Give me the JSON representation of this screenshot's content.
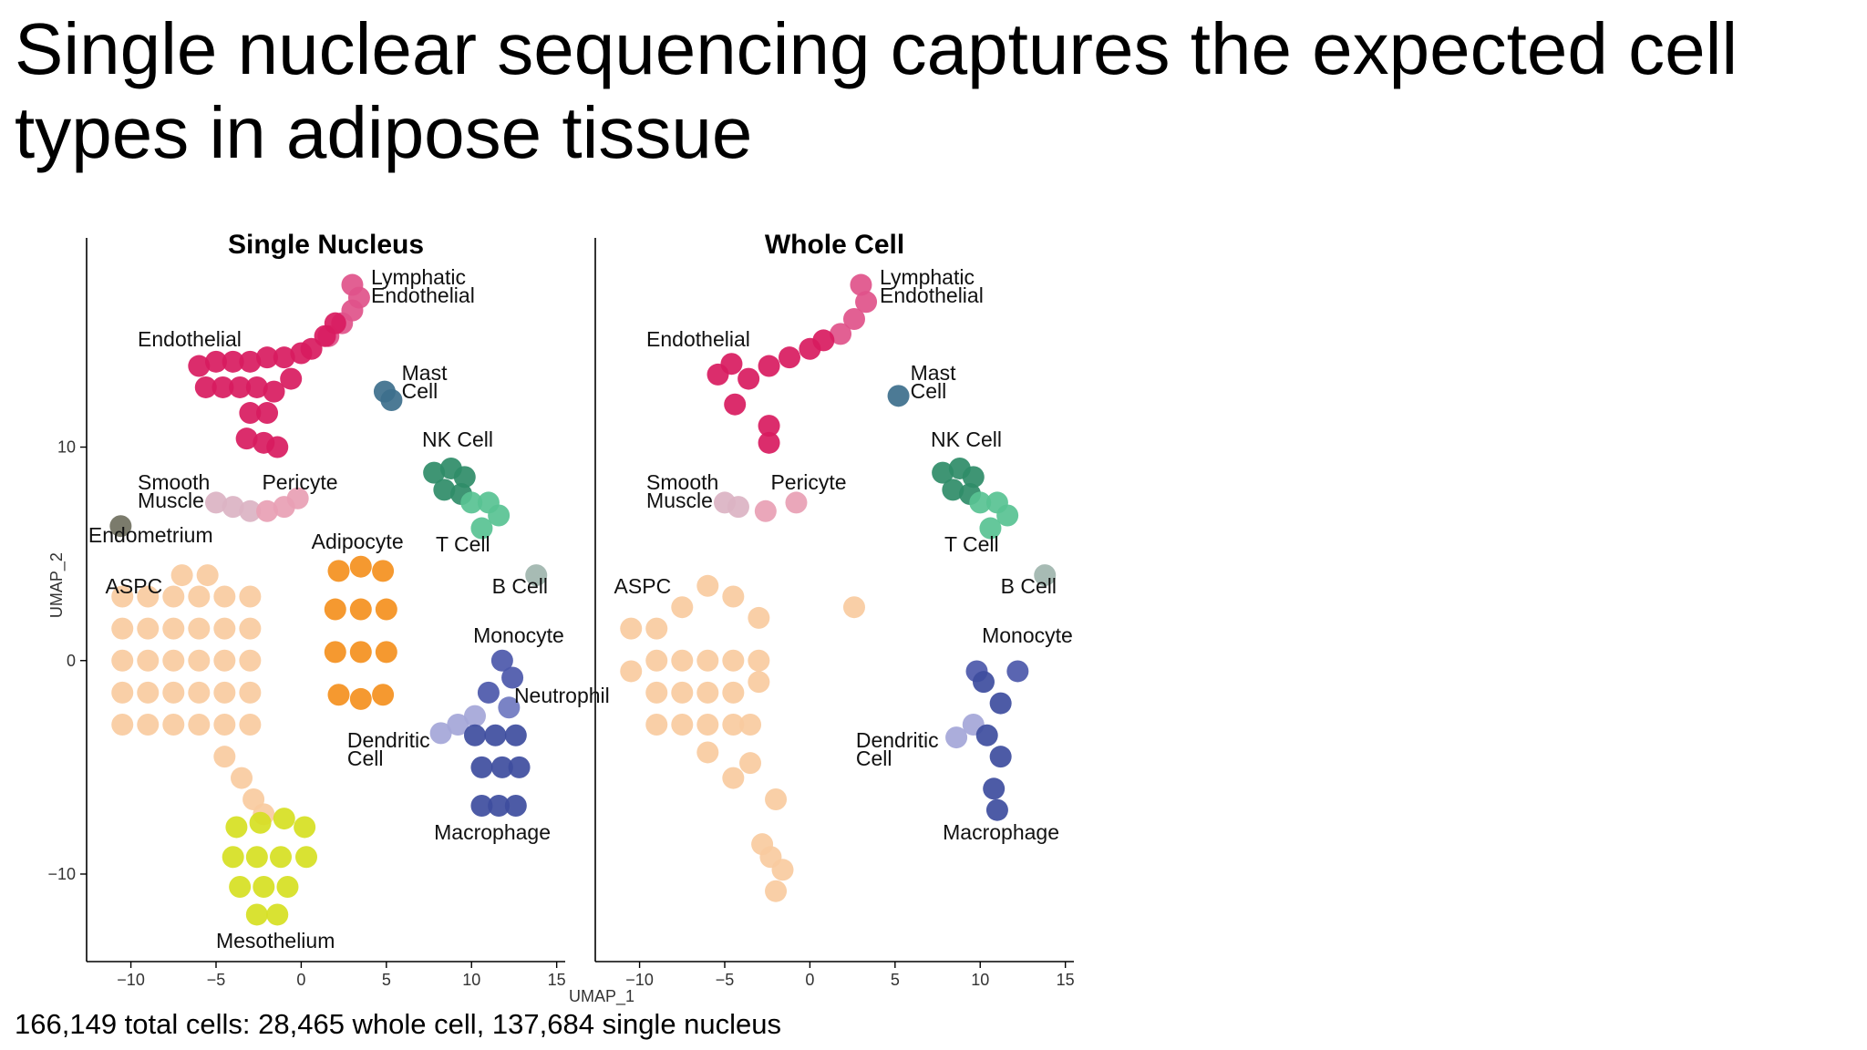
{
  "title": "Single nuclear sequencing captures the expected cell types in adipose tissue",
  "footer": "166,149 total cells: 28,465 whole cell, 137,684 single nucleus",
  "chart_data": [
    {
      "type": "scatter",
      "title": "Single Nucleus",
      "y_label": "UMAP_2",
      "xlim": [
        -12.6,
        15.5
      ],
      "ylim": [
        -14.1,
        19.8
      ],
      "xticks": [
        {
          "value": -10,
          "label": "−10"
        },
        {
          "value": -5,
          "label": "−5"
        },
        0,
        5,
        10,
        15
      ],
      "yticks": [
        {
          "value": -10,
          "label": "−10"
        },
        0,
        10
      ],
      "series": [
        {
          "name": "Lymphatic Endothelial",
          "color": "#e0528a",
          "x": [
            3.0,
            3.4,
            3.0,
            2.4,
            1.6
          ],
          "y": [
            17.6,
            17.0,
            16.4,
            15.8,
            15.2
          ],
          "label_x": 4.1,
          "label_y": 18.4
        },
        {
          "name": "Endothelial",
          "color": "#d81b5f",
          "x": [
            -6,
            -5,
            -4,
            -3,
            -2,
            -1,
            0,
            -5.6,
            -4.6,
            -3.6,
            -2.6,
            -1.6,
            -0.6,
            0.6,
            -3,
            -2,
            -3.2,
            -2.2,
            -1.4,
            1.4,
            2.0
          ],
          "y": [
            13.8,
            14.0,
            14.0,
            14.0,
            14.2,
            14.2,
            14.4,
            12.8,
            12.8,
            12.8,
            12.8,
            12.6,
            13.2,
            14.6,
            11.6,
            11.6,
            10.4,
            10.2,
            10.0,
            15.2,
            15.8
          ],
          "label_x": -9.6,
          "label_y": 15.5
        },
        {
          "name": "Mast Cell",
          "color": "#3d6f8c",
          "x": [
            4.9,
            5.3
          ],
          "y": [
            12.6,
            12.2
          ],
          "label_x": 5.9,
          "label_y": 13.9
        },
        {
          "name": "NK Cell",
          "color": "#2f8c68",
          "x": [
            7.8,
            8.8,
            9.6,
            8.4,
            9.4
          ],
          "y": [
            8.8,
            9.0,
            8.6,
            8.0,
            7.8
          ],
          "label_x": 7.1,
          "label_y": 10.8
        },
        {
          "name": "T Cell",
          "color": "#58c293",
          "x": [
            10.0,
            11.0,
            11.6,
            10.6
          ],
          "y": [
            7.4,
            7.4,
            6.8,
            6.2
          ],
          "label_x": 7.9,
          "label_y": 5.9
        },
        {
          "name": "Smooth Muscle",
          "color": "#dbb3c3",
          "x": [
            -5.0,
            -4.0,
            -3.0
          ],
          "y": [
            7.4,
            7.2,
            7.0
          ],
          "label_x": -9.6,
          "label_y": 8.8
        },
        {
          "name": "Pericyte",
          "color": "#e8a0b4",
          "x": [
            -2.0,
            -1.0,
            -0.2
          ],
          "y": [
            7.0,
            7.2,
            7.6
          ],
          "label_x": -2.3,
          "label_y": 8.8
        },
        {
          "name": "Endometrium",
          "color": "#707060",
          "x": [
            -10.6
          ],
          "y": [
            6.3
          ],
          "label_x": -12.5,
          "label_y": 6.3
        },
        {
          "name": "Adipocyte",
          "color": "#f4901e",
          "x": [
            2.2,
            3.5,
            4.8,
            2.0,
            3.5,
            5.0,
            2.0,
            3.5,
            5.0,
            2.2,
            3.5,
            4.8
          ],
          "y": [
            4.2,
            4.4,
            4.2,
            2.4,
            2.4,
            2.4,
            0.4,
            0.4,
            0.4,
            -1.6,
            -1.8,
            -1.6
          ],
          "label_x": 0.6,
          "label_y": 6.0
        },
        {
          "name": "ASPC",
          "color": "#f9cb9f",
          "x": [
            -10.5,
            -9,
            -7.5,
            -6,
            -4.5,
            -3,
            -10.5,
            -9,
            -7.5,
            -6,
            -4.5,
            -3,
            -10.5,
            -9,
            -7.5,
            -6,
            -4.5,
            -3,
            -10.5,
            -9,
            -7.5,
            -6,
            -4.5,
            -3,
            -10.5,
            -9,
            -7.5,
            -6,
            -4.5,
            -3,
            -7,
            -5.5,
            -4.5,
            -3.5,
            -2.8,
            -2.2
          ],
          "y": [
            3,
            3,
            3,
            3,
            3,
            3,
            1.5,
            1.5,
            1.5,
            1.5,
            1.5,
            1.5,
            0,
            0,
            0,
            0,
            0,
            0,
            -1.5,
            -1.5,
            -1.5,
            -1.5,
            -1.5,
            -1.5,
            -3,
            -3,
            -3,
            -3,
            -3,
            -3,
            4,
            4,
            -4.5,
            -5.5,
            -6.5,
            -7.2
          ],
          "label_x": -11.5,
          "label_y": 3.9
        },
        {
          "name": "B Cell",
          "color": "#9fb5ae",
          "x": [
            13.8
          ],
          "y": [
            4.0
          ],
          "label_x": 11.2,
          "label_y": 3.9
        },
        {
          "name": "Monocyte",
          "color": "#4c58aa",
          "x": [
            11.8,
            12.4,
            11.0
          ],
          "y": [
            0,
            -0.8,
            -1.5
          ],
          "label_x": 10.1,
          "label_y": 1.6
        },
        {
          "name": "Neutrophil",
          "color": "#6f78c0",
          "x": [
            12.2
          ],
          "y": [
            -2.2
          ],
          "label_x": 12.5,
          "label_y": -1.2
        },
        {
          "name": "Dendritic Cell",
          "color": "#a4a6d8",
          "x": [
            8.2,
            9.2,
            10.2
          ],
          "y": [
            -3.4,
            -3.0,
            -2.6
          ],
          "label_x": 2.7,
          "label_y": -3.3
        },
        {
          "name": "Macrophage",
          "color": "#3e4d9e",
          "x": [
            10.2,
            11.4,
            12.6,
            10.6,
            11.8,
            12.8,
            10.6,
            11.6,
            12.6
          ],
          "y": [
            -3.5,
            -3.5,
            -3.5,
            -5,
            -5,
            -5,
            -6.8,
            -6.8,
            -6.8
          ],
          "label_x": 7.8,
          "label_y": -7.6
        },
        {
          "name": "Mesothelium",
          "color": "#d6df22",
          "x": [
            -3.8,
            -2.4,
            -1.0,
            0.2,
            -4,
            -2.6,
            -1.2,
            0.3,
            -3.6,
            -2.2,
            -0.8,
            -2.6,
            -1.4
          ],
          "y": [
            -7.8,
            -7.6,
            -7.4,
            -7.8,
            -9.2,
            -9.2,
            -9.2,
            -9.2,
            -10.6,
            -10.6,
            -10.6,
            -11.9,
            -11.9
          ],
          "label_x": -5.0,
          "label_y": -12.7
        }
      ]
    },
    {
      "type": "scatter",
      "title": "Whole Cell",
      "x_label": "UMAP_1",
      "xlim": [
        -12.6,
        15.5
      ],
      "ylim": [
        -14.1,
        19.8
      ],
      "xticks": [
        {
          "value": -10,
          "label": "−10"
        },
        {
          "value": -5,
          "label": "−5"
        },
        0,
        5,
        10,
        15
      ],
      "series": [
        {
          "name": "Lymphatic Endothelial",
          "color": "#e0528a",
          "x": [
            3.0,
            3.3,
            2.6,
            1.8
          ],
          "y": [
            17.6,
            16.8,
            16.0,
            15.3
          ],
          "label_x": 4.1,
          "label_y": 18.4
        },
        {
          "name": "Endothelial",
          "color": "#d81b5f",
          "x": [
            -4.6,
            -3.6,
            -2.4,
            -1.2,
            0,
            0.8,
            -4.4,
            -2.4,
            -2.4,
            -5.4
          ],
          "y": [
            13.9,
            13.2,
            13.8,
            14.2,
            14.6,
            15,
            12,
            11,
            10.2,
            13.4
          ],
          "label_x": -9.6,
          "label_y": 15.5
        },
        {
          "name": "Mast Cell",
          "color": "#3d6f8c",
          "x": [
            5.2
          ],
          "y": [
            12.4
          ],
          "label_x": 5.9,
          "label_y": 13.9
        },
        {
          "name": "NK Cell",
          "color": "#2f8c68",
          "x": [
            7.8,
            8.8,
            9.6,
            8.4,
            9.4
          ],
          "y": [
            8.8,
            9.0,
            8.6,
            8.0,
            7.8
          ],
          "label_x": 7.1,
          "label_y": 10.8
        },
        {
          "name": "T Cell",
          "color": "#58c293",
          "x": [
            10.0,
            11.0,
            11.6,
            10.6
          ],
          "y": [
            7.4,
            7.4,
            6.8,
            6.2
          ],
          "label_x": 7.9,
          "label_y": 5.9
        },
        {
          "name": "Smooth Muscle",
          "color": "#dbb3c3",
          "x": [
            -5.0,
            -4.2
          ],
          "y": [
            7.4,
            7.2
          ],
          "label_x": -9.6,
          "label_y": 8.8
        },
        {
          "name": "Pericyte",
          "color": "#e8a0b4",
          "x": [
            -2.6,
            -0.8
          ],
          "y": [
            7.0,
            7.4
          ],
          "label_x": -2.3,
          "label_y": 8.8
        },
        {
          "name": "ASPC",
          "color": "#f9cb9f",
          "x": [
            -10.5,
            -9,
            -7.5,
            -6,
            -4.5,
            -3,
            -9,
            -7.5,
            -6,
            -4.5,
            -3,
            -10.5,
            -9,
            -7.5,
            -6,
            -4.5,
            -3,
            -9,
            -7.5,
            -6,
            -4.5,
            -3.5,
            -6,
            -4.5,
            2.6,
            -2.3,
            -2.8,
            -1.6,
            -2,
            -3.5,
            -2
          ],
          "y": [
            1.5,
            1.5,
            2.5,
            3.5,
            3,
            2,
            0,
            0,
            0,
            0,
            0,
            -0.5,
            -1.5,
            -1.5,
            -1.5,
            -1.5,
            -1,
            -3,
            -3,
            -3,
            -3,
            -3,
            -4.3,
            -5.5,
            2.5,
            -9.2,
            -8.6,
            -9.8,
            -10.8,
            -4.8,
            -6.5
          ],
          "label_x": -11.5,
          "label_y": 3.9
        },
        {
          "name": "B Cell",
          "color": "#9fb5ae",
          "x": [
            13.8
          ],
          "y": [
            4.0
          ],
          "label_x": 11.2,
          "label_y": 3.9
        },
        {
          "name": "Monocyte",
          "color": "#4c58aa",
          "x": [
            9.8,
            12.2
          ],
          "y": [
            -0.5,
            -0.5
          ],
          "label_x": 10.1,
          "label_y": 1.6
        },
        {
          "name": "Dendritic Cell",
          "color": "#a4a6d8",
          "x": [
            8.6,
            9.6
          ],
          "y": [
            -3.6,
            -3.0
          ],
          "label_x": 2.7,
          "label_y": -3.3
        },
        {
          "name": "Macrophage",
          "color": "#3e4d9e",
          "x": [
            10.2,
            11.2,
            10.4,
            11.2,
            10.8,
            11.0
          ],
          "y": [
            -1,
            -2,
            -3.5,
            -4.5,
            -6,
            -7
          ],
          "label_x": 7.8,
          "label_y": -7.6
        }
      ]
    }
  ]
}
